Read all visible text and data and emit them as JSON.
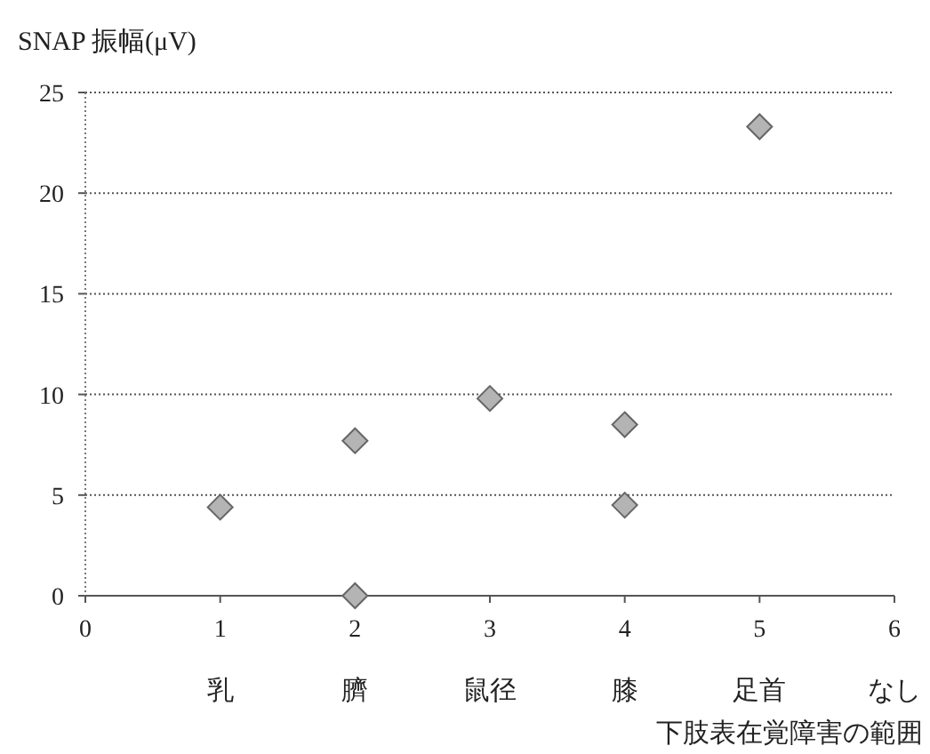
{
  "chart_data": {
    "type": "scatter",
    "ylabel": "SNAP 振幅(μV)",
    "xlabel": "下肢表在覚障害の範囲",
    "x": [
      1,
      2,
      2,
      3,
      4,
      4,
      5
    ],
    "values": [
      4.4,
      7.7,
      0,
      9.8,
      8.5,
      4.5,
      23.3
    ],
    "color": "#b4b4b4",
    "marker": "diamond",
    "grid": "y",
    "xlim": [
      0,
      6
    ],
    "xticks": [
      0,
      1,
      2,
      3,
      4,
      5,
      6
    ],
    "ylim": [
      0,
      25
    ],
    "yticks": [
      0,
      5,
      10,
      15,
      20,
      25
    ],
    "annotations": [
      "乳",
      "臍",
      "鼠径",
      "膝",
      "足首",
      "なし"
    ]
  }
}
